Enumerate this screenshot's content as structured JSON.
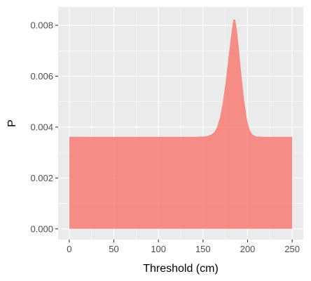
{
  "chart_data": {
    "type": "area",
    "title": "",
    "xlabel": "Threshold (cm)",
    "ylabel": "P",
    "xlim": [
      -12.5,
      262.5
    ],
    "ylim": [
      -0.00042,
      0.00872
    ],
    "x_ticks": [
      0,
      50,
      100,
      150,
      200,
      250
    ],
    "x_tick_labels": [
      "0",
      "50",
      "100",
      "150",
      "200",
      "250"
    ],
    "y_ticks": [
      0,
      0.002,
      0.004,
      0.006,
      0.008
    ],
    "y_tick_labels": [
      "0.000",
      "0.002",
      "0.004",
      "0.006",
      "0.008"
    ],
    "grid": true,
    "legend": "none",
    "colors": {
      "panel": "#EBEBEB",
      "grid": "#FFFFFF",
      "fill": "#F8766D",
      "fill_opacity": 0.8
    },
    "series": [
      {
        "x": [
          0,
          50,
          100,
          140,
          150,
          155,
          160,
          163,
          166,
          169,
          172,
          175,
          178,
          180,
          182,
          184,
          186,
          188,
          190,
          193,
          196,
          199,
          202,
          205,
          210,
          220,
          250
        ],
        "y": [
          0.00362,
          0.00362,
          0.00362,
          0.00362,
          0.00363,
          0.00365,
          0.00372,
          0.00382,
          0.00402,
          0.00437,
          0.00492,
          0.00567,
          0.00655,
          0.00716,
          0.00772,
          0.00822,
          0.00824,
          0.00782,
          0.00716,
          0.00606,
          0.0051,
          0.00436,
          0.00392,
          0.00372,
          0.00363,
          0.00362,
          0.00362
        ]
      }
    ]
  }
}
